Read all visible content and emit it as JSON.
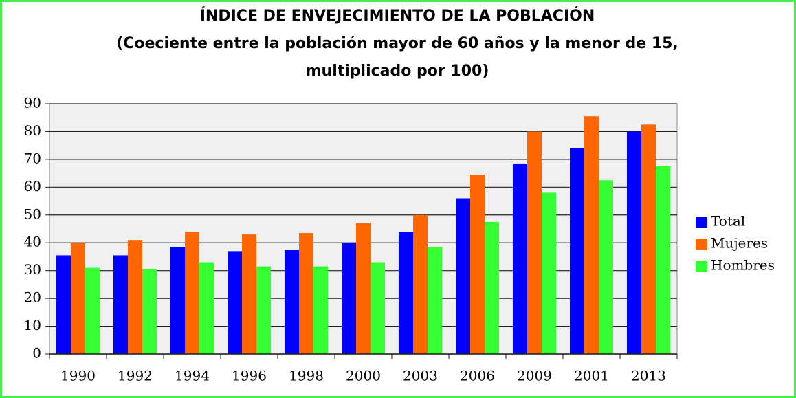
{
  "chart_data": {
    "type": "bar",
    "title": "ÍNDICE DE ENVEJECIMIENTO DE LA POBLACIÓN",
    "subtitle": [
      "(Coeciente entre la población mayor de 60 años y la menor de 15,",
      "multiplicado por 100)"
    ],
    "categories": [
      "1990",
      "1992",
      "1994",
      "1996",
      "1998",
      "2000",
      "2003",
      "2006",
      "2009",
      "2001",
      "2013"
    ],
    "series": [
      {
        "name": "Total",
        "color": "#0000ff",
        "values": [
          35.5,
          35.5,
          38.5,
          37,
          37.5,
          40,
          44,
          56,
          68.5,
          74,
          80
        ]
      },
      {
        "name": "Mujeres",
        "color": "#ff6600",
        "values": [
          40,
          41,
          44,
          43,
          43.5,
          47,
          50,
          64.5,
          80,
          85.5,
          82.5
        ]
      },
      {
        "name": "Hombres",
        "color": "#33ff33",
        "values": [
          31,
          30.5,
          33,
          31.5,
          31.5,
          33,
          38.5,
          47.5,
          58,
          62.5,
          67.5
        ]
      }
    ],
    "ylim": [
      0,
      90
    ],
    "yticks": [
      0,
      10,
      20,
      30,
      40,
      50,
      60,
      70,
      80,
      90
    ],
    "grid": true,
    "legend": "right"
  }
}
